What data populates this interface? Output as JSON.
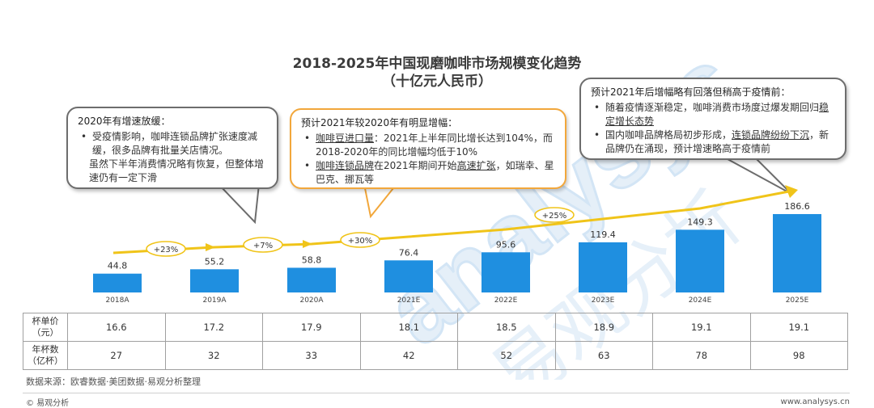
{
  "title_line1": "2018-2025年中国现磨咖啡市场规模变化趋势",
  "title_line2": "（十亿元人民币）",
  "colors": {
    "bar": "#1f8fe0",
    "arrow": "#f0c419",
    "growth_border": "#f0c419",
    "bubble_gray": "#6d6d6d",
    "bubble_orange": "#f2a73b"
  },
  "bubbles": {
    "left": {
      "heading": "2020年有增速放缓：",
      "items": [
        "受疫情影响，咖啡连锁品牌扩张速度减缓，很多品牌有批量关店情况。"
      ],
      "extra": "虽然下半年消费情况略有恢复，但整体增速仍有一定下滑"
    },
    "middle": {
      "heading": "预计2021年较2020年有明显增幅：",
      "item1_a": "咖啡豆进口量",
      "item1_b": "：2021年上半年同比增长达到104%，而2018-2020年的同比增幅均低于10%",
      "item2_a": "咖啡连锁品牌",
      "item2_b": "在2021年期间开始",
      "item2_c": "高速扩张",
      "item2_d": "，如瑞幸、星巴克、挪瓦等"
    },
    "right": {
      "heading": "预计2021年后增幅略有回落但稍高于疫情前：",
      "item1_a": "随着疫情逐渐稳定，咖啡消费市场度过爆发期回归",
      "item1_b": "稳定增长态势",
      "item2_a": "国内咖啡品牌格局初步形成，",
      "item2_b": "连锁品牌纷纷下沉",
      "item2_c": "，新品牌仍在涌现，预计增速略高于疫情前"
    }
  },
  "chart_data": {
    "type": "bar",
    "categories": [
      "2018A",
      "2019A",
      "2020A",
      "2021E",
      "2022E",
      "2023E",
      "2024E",
      "2025E"
    ],
    "values": [
      44.8,
      55.2,
      58.8,
      76.4,
      95.6,
      119.4,
      149.3,
      186.6
    ],
    "growth_labels": [
      {
        "between": [
          "2018A",
          "2019A"
        ],
        "label": "+23%"
      },
      {
        "between": [
          "2019A",
          "2020A"
        ],
        "label": "+7%"
      },
      {
        "between": [
          "2020A",
          "2021E"
        ],
        "label": "+30%"
      },
      {
        "between": [
          "2022E",
          "2023E"
        ],
        "label": "+25%"
      }
    ]
  },
  "table": {
    "rows": [
      {
        "header": [
          "杯单价",
          "（元）"
        ],
        "values": [
          "16.6",
          "17.2",
          "17.9",
          "18.1",
          "18.5",
          "18.9",
          "19.1",
          "19.1"
        ]
      },
      {
        "header": [
          "年杯数",
          "（亿杯）"
        ],
        "values": [
          "27",
          "32",
          "33",
          "42",
          "52",
          "63",
          "78",
          "98"
        ]
      }
    ]
  },
  "source": "数据来源：欧睿数据·美团数据·易观分析整理",
  "logo": "© 易观分析",
  "url": "www.analysys.cn",
  "watermark_en": "analysys",
  "watermark_cn": "易观分析"
}
